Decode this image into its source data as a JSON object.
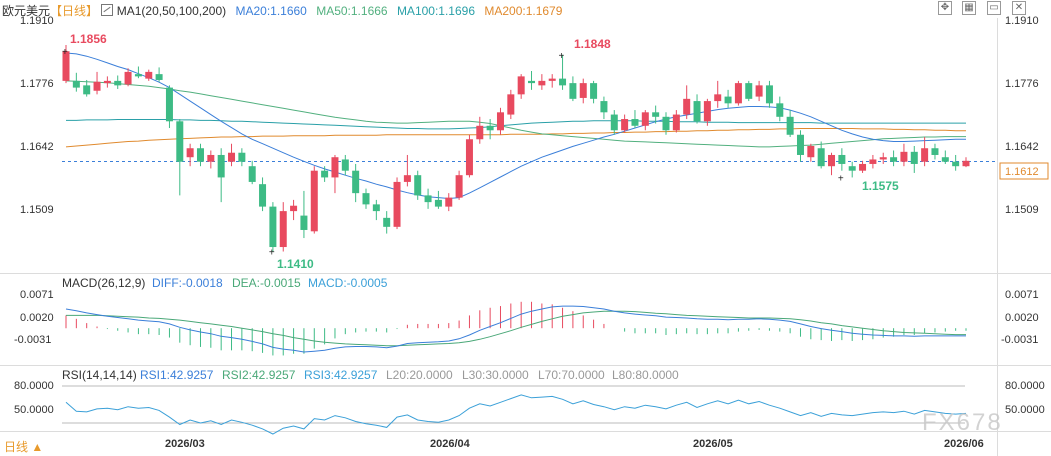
{
  "header": {
    "symbol": "欧元美元",
    "period": "【日线】",
    "ma_label": "MA1(20,50,100,200)",
    "ma20": "MA20:1.1660",
    "ma50": "MA50:1.1666",
    "ma100": "MA100:1.1696",
    "ma200": "MA200:1.1679"
  },
  "toolbar": {
    "move_icon": "move-icon",
    "grid_icon": "grid-icon",
    "restore_icon": "restore-icon",
    "close_icon": "close-icon"
  },
  "colors": {
    "up": "#e84a5f",
    "down": "#3dbb85",
    "ma20": "#3b7fd9",
    "ma50": "#52b07f",
    "ma100": "#2aa0a8",
    "ma200": "#e08a2e",
    "dea": "#4aa878",
    "rsi": "#3ba0d8"
  },
  "price_axis": {
    "ticks": [
      "1.1910",
      "1.1776",
      "1.1642",
      "1.1509"
    ],
    "last": "1.1612"
  },
  "annotations": {
    "high1": "1.1856",
    "high2": "1.1848",
    "low1": "1.1410",
    "low2": "1.1575"
  },
  "macd": {
    "label": "MACD(26,12,9)",
    "diff": "DIFF:-0.0018",
    "dea": "DEA:-0.0015",
    "macd": "MACD:-0.0005",
    "ticks": [
      "0.0071",
      "0.0020",
      "-0.0031"
    ]
  },
  "rsi": {
    "label": "RSI(14,14,14)",
    "rsi1": "RSI1:42.9257",
    "rsi2": "RSI2:42.9257",
    "rsi3": "RSI3:42.9257",
    "l20": "L20:20.0000",
    "l30": "L30:30.0000",
    "l70": "L70:70.0000",
    "l80": "L80:80.0000",
    "ticks": [
      "80.0000",
      "50.0000"
    ]
  },
  "footer": {
    "period_button": "日线 ▲",
    "dates": [
      "2026/03",
      "2026/04",
      "2026/05",
      "2026/06"
    ]
  },
  "watermark": "FX678",
  "chart_data": {
    "type": "candlestick",
    "ylim": [
      1.138,
      1.193
    ],
    "candles": [
      [
        1.179,
        1.187,
        1.1785,
        1.1856
      ],
      [
        1.179,
        1.1808,
        1.1766,
        1.1775
      ],
      [
        1.178,
        1.1792,
        1.1755,
        1.176
      ],
      [
        1.1768,
        1.181,
        1.176,
        1.1788
      ],
      [
        1.1785,
        1.18,
        1.1775,
        1.179
      ],
      [
        1.179,
        1.1802,
        1.1772,
        1.178
      ],
      [
        1.1782,
        1.1818,
        1.1778,
        1.181
      ],
      [
        1.1805,
        1.1822,
        1.1796,
        1.18
      ],
      [
        1.1795,
        1.1815,
        1.179,
        1.181
      ],
      [
        1.1805,
        1.182,
        1.1788,
        1.1792
      ],
      [
        1.1775,
        1.178,
        1.1685,
        1.17
      ],
      [
        1.17,
        1.1705,
        1.1535,
        1.161
      ],
      [
        1.162,
        1.165,
        1.16,
        1.164
      ],
      [
        1.164,
        1.165,
        1.16,
        1.161
      ],
      [
        1.161,
        1.1635,
        1.1595,
        1.1625
      ],
      [
        1.1625,
        1.164,
        1.152,
        1.1575
      ],
      [
        1.161,
        1.165,
        1.16,
        1.163
      ],
      [
        1.163,
        1.164,
        1.16,
        1.161
      ],
      [
        1.16,
        1.1612,
        1.156,
        1.1565
      ],
      [
        1.156,
        1.1575,
        1.15,
        1.151
      ],
      [
        1.151,
        1.152,
        1.141,
        1.142
      ],
      [
        1.142,
        1.152,
        1.141,
        1.15
      ],
      [
        1.15,
        1.1525,
        1.148,
        1.1512
      ],
      [
        1.149,
        1.1545,
        1.144,
        1.1458
      ],
      [
        1.1455,
        1.16,
        1.145,
        1.159
      ],
      [
        1.159,
        1.16,
        1.1565,
        1.1575
      ],
      [
        1.1575,
        1.1625,
        1.154,
        1.162
      ],
      [
        1.1615,
        1.1625,
        1.158,
        1.159
      ],
      [
        1.159,
        1.1605,
        1.152,
        1.154
      ],
      [
        1.154,
        1.155,
        1.1505,
        1.1515
      ],
      [
        1.1515,
        1.1525,
        1.148,
        1.15
      ],
      [
        1.1485,
        1.15,
        1.145,
        1.1465
      ],
      [
        1.1465,
        1.1575,
        1.146,
        1.1565
      ],
      [
        1.1565,
        1.1625,
        1.1555,
        1.158
      ],
      [
        1.158,
        1.159,
        1.1525,
        1.1535
      ],
      [
        1.1535,
        1.155,
        1.1505,
        1.152
      ],
      [
        1.1525,
        1.1545,
        1.1505,
        1.151
      ],
      [
        1.151,
        1.154,
        1.15,
        1.153
      ],
      [
        1.153,
        1.159,
        1.1525,
        1.158
      ],
      [
        1.158,
        1.167,
        1.1575,
        1.166
      ],
      [
        1.166,
        1.171,
        1.165,
        1.169
      ],
      [
        1.169,
        1.1705,
        1.166,
        1.168
      ],
      [
        1.168,
        1.173,
        1.167,
        1.172
      ],
      [
        1.1715,
        1.177,
        1.1705,
        1.176
      ],
      [
        1.176,
        1.1805,
        1.175,
        1.18
      ],
      [
        1.179,
        1.1812,
        1.177,
        1.1785
      ],
      [
        1.178,
        1.1805,
        1.177,
        1.179
      ],
      [
        1.179,
        1.1805,
        1.1775,
        1.1795
      ],
      [
        1.1795,
        1.1848,
        1.177,
        1.178
      ],
      [
        1.1785,
        1.18,
        1.1745,
        1.175
      ],
      [
        1.1752,
        1.1795,
        1.174,
        1.1785
      ],
      [
        1.1785,
        1.179,
        1.174,
        1.175
      ],
      [
        1.1745,
        1.1755,
        1.1705,
        1.172
      ],
      [
        1.1715,
        1.1725,
        1.167,
        1.168
      ],
      [
        1.168,
        1.1715,
        1.1675,
        1.1705
      ],
      [
        1.1705,
        1.1725,
        1.1685,
        1.169
      ],
      [
        1.169,
        1.1725,
        1.168,
        1.172
      ],
      [
        1.172,
        1.1735,
        1.1695,
        1.171
      ],
      [
        1.171,
        1.172,
        1.167,
        1.168
      ],
      [
        1.168,
        1.1725,
        1.1675,
        1.1715
      ],
      [
        1.1715,
        1.178,
        1.1705,
        1.175
      ],
      [
        1.1745,
        1.176,
        1.1695,
        1.17
      ],
      [
        1.17,
        1.175,
        1.169,
        1.1745
      ],
      [
        1.1745,
        1.179,
        1.173,
        1.176
      ],
      [
        1.1755,
        1.177,
        1.173,
        1.174
      ],
      [
        1.174,
        1.179,
        1.1735,
        1.1785
      ],
      [
        1.1785,
        1.179,
        1.1745,
        1.175
      ],
      [
        1.1755,
        1.179,
        1.1745,
        1.178
      ],
      [
        1.178,
        1.179,
        1.173,
        1.174
      ],
      [
        1.174,
        1.1755,
        1.17,
        1.171
      ],
      [
        1.171,
        1.1725,
        1.1665,
        1.167
      ],
      [
        1.167,
        1.168,
        1.161,
        1.1625
      ],
      [
        1.162,
        1.165,
        1.161,
        1.1645
      ],
      [
        1.164,
        1.1655,
        1.1595,
        1.16
      ],
      [
        1.16,
        1.163,
        1.158,
        1.1625
      ],
      [
        1.1625,
        1.164,
        1.159,
        1.1605
      ],
      [
        1.16,
        1.161,
        1.1575,
        1.159
      ],
      [
        1.159,
        1.1612,
        1.1585,
        1.1605
      ],
      [
        1.1605,
        1.1625,
        1.1595,
        1.1615
      ],
      [
        1.1615,
        1.163,
        1.1605,
        1.162
      ],
      [
        1.162,
        1.1635,
        1.16,
        1.161
      ],
      [
        1.161,
        1.165,
        1.16,
        1.1632
      ],
      [
        1.1632,
        1.1645,
        1.1585,
        1.1605
      ],
      [
        1.161,
        1.1665,
        1.16,
        1.164
      ],
      [
        1.164,
        1.165,
        1.1615,
        1.1625
      ],
      [
        1.162,
        1.1635,
        1.1605,
        1.161
      ],
      [
        1.161,
        1.1625,
        1.159,
        1.16
      ],
      [
        1.16,
        1.162,
        1.1598,
        1.1612
      ]
    ],
    "ma20": [
      1.1852,
      1.185,
      1.1845,
      1.1838,
      1.183,
      1.1822,
      1.1815,
      1.1806,
      1.1797,
      1.1787,
      1.1775,
      1.176,
      1.1745,
      1.173,
      1.1715,
      1.17,
      1.1686,
      1.1672,
      1.166,
      1.165,
      1.164,
      1.163,
      1.162,
      1.1611,
      1.1602,
      1.1594,
      1.1587,
      1.158,
      1.1573,
      1.1567,
      1.156,
      1.1554,
      1.1547,
      1.1541,
      1.1536,
      1.1532,
      1.153,
      1.1528,
      1.153,
      1.154,
      1.1552,
      1.1564,
      1.1576,
      1.1588,
      1.16,
      1.161,
      1.162,
      1.1628,
      1.1636,
      1.1644,
      1.1651,
      1.1658,
      1.1665,
      1.1671,
      1.1678,
      1.1685,
      1.1692,
      1.1699,
      1.1705,
      1.171,
      1.1714,
      1.1718,
      1.1722,
      1.1726,
      1.1729,
      1.1731,
      1.1733,
      1.1733,
      1.1732,
      1.173,
      1.1725,
      1.1718,
      1.171,
      1.17,
      1.169,
      1.168,
      1.1672,
      1.1665,
      1.166,
      1.1657,
      1.1655,
      1.1655,
      1.1656,
      1.1657,
      1.1658,
      1.1659,
      1.166,
      1.166
    ],
    "ma50": [
      1.179,
      1.1789,
      1.1788,
      1.1787,
      1.1786,
      1.1784,
      1.1782,
      1.178,
      1.1778,
      1.1775,
      1.1772,
      1.1768,
      1.1765,
      1.1761,
      1.1757,
      1.1753,
      1.1749,
      1.1745,
      1.1741,
      1.1737,
      1.1733,
      1.1729,
      1.1725,
      1.1721,
      1.1717,
      1.1713,
      1.1709,
      1.1706,
      1.1703,
      1.17,
      1.1698,
      1.1697,
      1.1696,
      1.1696,
      1.1697,
      1.1698,
      1.1699,
      1.17,
      1.17,
      1.17,
      1.1698,
      1.1695,
      1.169,
      1.1685,
      1.168,
      1.1676,
      1.1672,
      1.167,
      1.1668,
      1.1666,
      1.1664,
      1.1662,
      1.166,
      1.1658,
      1.1656,
      1.1655,
      1.1654,
      1.1653,
      1.1652,
      1.1651,
      1.165,
      1.1649,
      1.1648,
      1.1647,
      1.1646,
      1.1645,
      1.1644,
      1.1643,
      1.1643,
      1.1644,
      1.1645,
      1.1646,
      1.1647,
      1.1649,
      1.1651,
      1.1653,
      1.1655,
      1.1657,
      1.1659,
      1.1661,
      1.1662,
      1.1663,
      1.1664,
      1.1665,
      1.1665,
      1.1666,
      1.1666,
      1.1666
    ],
    "ma100": [
      1.1702,
      1.1702,
      1.1703,
      1.1703,
      1.1703,
      1.1704,
      1.1704,
      1.1704,
      1.1704,
      1.1704,
      1.1704,
      1.1703,
      1.1703,
      1.1702,
      1.1702,
      1.1701,
      1.17,
      1.17,
      1.1699,
      1.1698,
      1.1697,
      1.1696,
      1.1695,
      1.1694,
      1.1693,
      1.1692,
      1.1691,
      1.169,
      1.1689,
      1.1688,
      1.1687,
      1.1686,
      1.1685,
      1.1684,
      1.1684,
      1.1683,
      1.1683,
      1.1683,
      1.1684,
      1.1685,
      1.1686,
      1.1688,
      1.169,
      1.1692,
      1.1694,
      1.1696,
      1.1697,
      1.1698,
      1.1699,
      1.17,
      1.17,
      1.1701,
      1.1701,
      1.1701,
      1.1701,
      1.1701,
      1.17,
      1.17,
      1.17,
      1.1699,
      1.1699,
      1.1699,
      1.1698,
      1.1698,
      1.1698,
      1.1697,
      1.1697,
      1.1697,
      1.1697,
      1.1697,
      1.1697,
      1.1697,
      1.1697,
      1.1696,
      1.1696,
      1.1696,
      1.1696,
      1.1696,
      1.1696,
      1.1696,
      1.1696,
      1.1696,
      1.1696,
      1.1696,
      1.1696,
      1.1696,
      1.1696,
      1.1696
    ],
    "ma200": [
      1.1643,
      1.1645,
      1.1647,
      1.1649,
      1.1651,
      1.1653,
      1.1655,
      1.1656,
      1.1658,
      1.1659,
      1.166,
      1.1661,
      1.1662,
      1.1663,
      1.1664,
      1.1665,
      1.1665,
      1.1666,
      1.1666,
      1.1667,
      1.1667,
      1.1667,
      1.1668,
      1.1668,
      1.1668,
      1.1668,
      1.1669,
      1.1669,
      1.1669,
      1.1669,
      1.1669,
      1.167,
      1.167,
      1.167,
      1.167,
      1.167,
      1.167,
      1.167,
      1.167,
      1.167,
      1.167,
      1.167,
      1.167,
      1.1671,
      1.1671,
      1.1671,
      1.1671,
      1.1672,
      1.1672,
      1.1673,
      1.1673,
      1.1674,
      1.1674,
      1.1675,
      1.1675,
      1.1676,
      1.1676,
      1.1677,
      1.1677,
      1.1678,
      1.1678,
      1.1679,
      1.1679,
      1.168,
      1.168,
      1.1681,
      1.1681,
      1.1682,
      1.1682,
      1.1683,
      1.1683,
      1.1684,
      1.1684,
      1.1684,
      1.1684,
      1.1684,
      1.1684,
      1.1683,
      1.1683,
      1.1683,
      1.1682,
      1.1682,
      1.1681,
      1.1681,
      1.168,
      1.168,
      1.1679,
      1.1679
    ],
    "macd_ylim": [
      -0.007,
      0.0085
    ],
    "diff": [
      0.0045,
      0.0041,
      0.0036,
      0.0032,
      0.0028,
      0.0025,
      0.0022,
      0.0019,
      0.0017,
      0.0015,
      0.001,
      0.0002,
      -0.0004,
      -0.0009,
      -0.0013,
      -0.0019,
      -0.0022,
      -0.0026,
      -0.0031,
      -0.0037,
      -0.0045,
      -0.0049,
      -0.0052,
      -0.0056,
      -0.0054,
      -0.0052,
      -0.0047,
      -0.0044,
      -0.0043,
      -0.0043,
      -0.0044,
      -0.0046,
      -0.0042,
      -0.0036,
      -0.0034,
      -0.0033,
      -0.0032,
      -0.003,
      -0.0025,
      -0.0016,
      -0.0005,
      0.0004,
      0.0013,
      0.0023,
      0.0033,
      0.004,
      0.0045,
      0.005,
      0.0052,
      0.0052,
      0.0051,
      0.0048,
      0.0045,
      0.004,
      0.0036,
      0.0033,
      0.0031,
      0.0029,
      0.0026,
      0.0025,
      0.0024,
      0.0022,
      0.0021,
      0.0021,
      0.002,
      0.0021,
      0.0021,
      0.0022,
      0.0021,
      0.0019,
      0.0016,
      0.001,
      0.0004,
      -0.0001,
      -0.0005,
      -0.0008,
      -0.0012,
      -0.0014,
      -0.0016,
      -0.0017,
      -0.0018,
      -0.0018,
      -0.0019,
      -0.0018,
      -0.0018,
      -0.0018,
      -0.0018,
      -0.0018
    ],
    "dea": [
      0.003,
      0.003,
      0.003,
      0.003,
      0.0029,
      0.0028,
      0.0027,
      0.0026,
      0.0024,
      0.0023,
      0.0021,
      0.0019,
      0.0016,
      0.0013,
      0.001,
      0.0007,
      0.0004,
      0.0,
      -0.0004,
      -0.0008,
      -0.0013,
      -0.0017,
      -0.0022,
      -0.0026,
      -0.003,
      -0.0033,
      -0.0035,
      -0.0037,
      -0.0038,
      -0.0039,
      -0.004,
      -0.0041,
      -0.0041,
      -0.004,
      -0.0039,
      -0.0038,
      -0.0037,
      -0.0036,
      -0.0034,
      -0.0031,
      -0.0026,
      -0.002,
      -0.0013,
      -0.0006,
      0.0002,
      0.0009,
      0.0016,
      0.0022,
      0.0028,
      0.0032,
      0.0036,
      0.0038,
      0.004,
      0.004,
      0.004,
      0.0039,
      0.0037,
      0.0035,
      0.0034,
      0.0032,
      0.003,
      0.0029,
      0.0028,
      0.0027,
      0.0026,
      0.0025,
      0.0024,
      0.0024,
      0.0024,
      0.0023,
      0.0022,
      0.002,
      0.0017,
      0.0013,
      0.001,
      0.0006,
      0.0003,
      0.0,
      -0.0003,
      -0.0006,
      -0.0008,
      -0.001,
      -0.0011,
      -0.0012,
      -0.0013,
      -0.0014,
      -0.0015,
      -0.0015
    ],
    "rsi_ylim": [
      0,
      100
    ],
    "rsi_values": [
      58,
      46,
      45,
      49,
      50,
      48,
      52,
      50,
      51,
      47,
      38,
      28,
      34,
      30,
      33,
      28,
      34,
      31,
      27,
      22,
      14,
      23,
      26,
      22,
      36,
      34,
      40,
      37,
      32,
      29,
      27,
      24,
      38,
      41,
      34,
      32,
      31,
      34,
      40,
      50,
      56,
      53,
      58,
      63,
      68,
      64,
      65,
      66,
      62,
      56,
      60,
      55,
      52,
      48,
      52,
      50,
      54,
      52,
      49,
      54,
      58,
      51,
      56,
      60,
      56,
      61,
      56,
      59,
      54,
      50,
      45,
      40,
      44,
      39,
      43,
      41,
      40,
      42,
      44,
      45,
      44,
      46,
      42,
      47,
      45,
      43,
      42,
      43
    ],
    "macd_hist": [
      0.003,
      0.0022,
      0.0012,
      0.0004,
      -0.0002,
      -0.0006,
      -0.001,
      -0.0014,
      -0.0014,
      -0.0016,
      -0.0022,
      -0.0034,
      -0.004,
      -0.0044,
      -0.0046,
      -0.0052,
      -0.0052,
      -0.0052,
      -0.0054,
      -0.0058,
      -0.0064,
      -0.0064,
      -0.006,
      -0.006,
      -0.0048,
      -0.0038,
      -0.0024,
      -0.0014,
      -0.001,
      -0.0008,
      -0.0008,
      -0.001,
      -0.0002,
      0.0008,
      0.001,
      0.001,
      0.001,
      0.0012,
      0.0018,
      0.003,
      0.0042,
      0.0048,
      0.0052,
      0.0058,
      0.0062,
      0.0062,
      0.0058,
      0.0056,
      0.0048,
      0.004,
      0.003,
      0.002,
      0.001,
      0.0,
      -0.0008,
      -0.0012,
      -0.0012,
      -0.0012,
      -0.0016,
      -0.0014,
      -0.0012,
      -0.0014,
      -0.0014,
      -0.0012,
      -0.0012,
      -0.0008,
      -0.0006,
      -0.0004,
      -0.0006,
      -0.0008,
      -0.0012,
      -0.002,
      -0.0026,
      -0.0028,
      -0.003,
      -0.0028,
      -0.003,
      -0.0028,
      -0.0026,
      -0.0022,
      -0.002,
      -0.0016,
      -0.0016,
      -0.0012,
      -0.001,
      -0.0008,
      -0.0006,
      -0.0006
    ]
  }
}
